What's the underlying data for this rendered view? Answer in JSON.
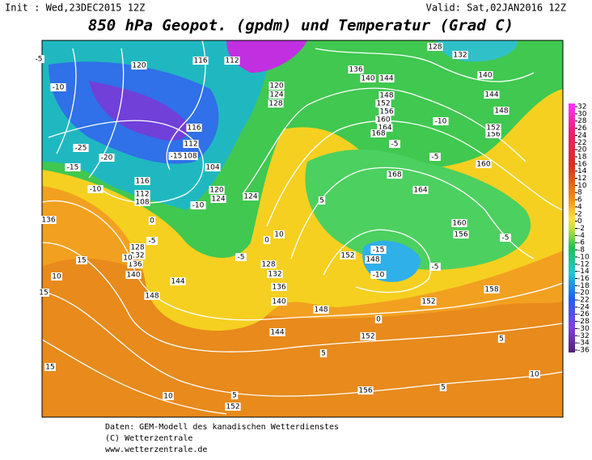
{
  "header": {
    "init": "Init : Wed,23DEC2015 12Z",
    "valid": "Valid: Sat,02JAN2016 12Z",
    "title": "850 hPa Geopot. (gpdm) und Temperatur (Grad C)"
  },
  "legend": {
    "ticks": [
      32,
      30,
      28,
      26,
      24,
      22,
      20,
      18,
      16,
      14,
      12,
      10,
      8,
      6,
      4,
      2,
      0,
      -2,
      -4,
      -6,
      -8,
      -10,
      -12,
      -14,
      -16,
      -18,
      -20,
      -22,
      -24,
      -26,
      -28,
      -30,
      -32,
      -34,
      -36
    ]
  },
  "geopotential_labels": [
    136,
    128,
    132,
    136,
    140,
    144,
    148,
    140,
    136,
    132,
    128,
    124,
    124,
    120,
    120,
    116,
    112,
    120,
    124,
    128,
    116,
    112,
    108,
    104,
    116,
    112,
    108,
    136,
    140,
    144,
    148,
    152,
    156,
    160,
    164,
    168,
    168,
    164,
    160,
    156,
    152,
    148,
    148,
    152,
    156,
    152,
    160,
    144,
    140,
    132,
    128,
    148,
    158,
    144,
    152,
    156,
    152
  ],
  "temperature_labels": [
    -5,
    -10,
    -25,
    -20,
    -15,
    -10,
    -15,
    -10,
    -5,
    -5,
    0,
    0,
    5,
    10,
    -5,
    -10,
    -5,
    -5,
    -10,
    -15,
    -5,
    0,
    5,
    5,
    10,
    15,
    10,
    5,
    10,
    15,
    10,
    15,
    5
  ],
  "footer": {
    "source": "Daten: GEM-Modell des kanadischen Wetterdienstes",
    "copyright": "(C) Wetterzentrale",
    "url": "www.wetterzentrale.de"
  }
}
